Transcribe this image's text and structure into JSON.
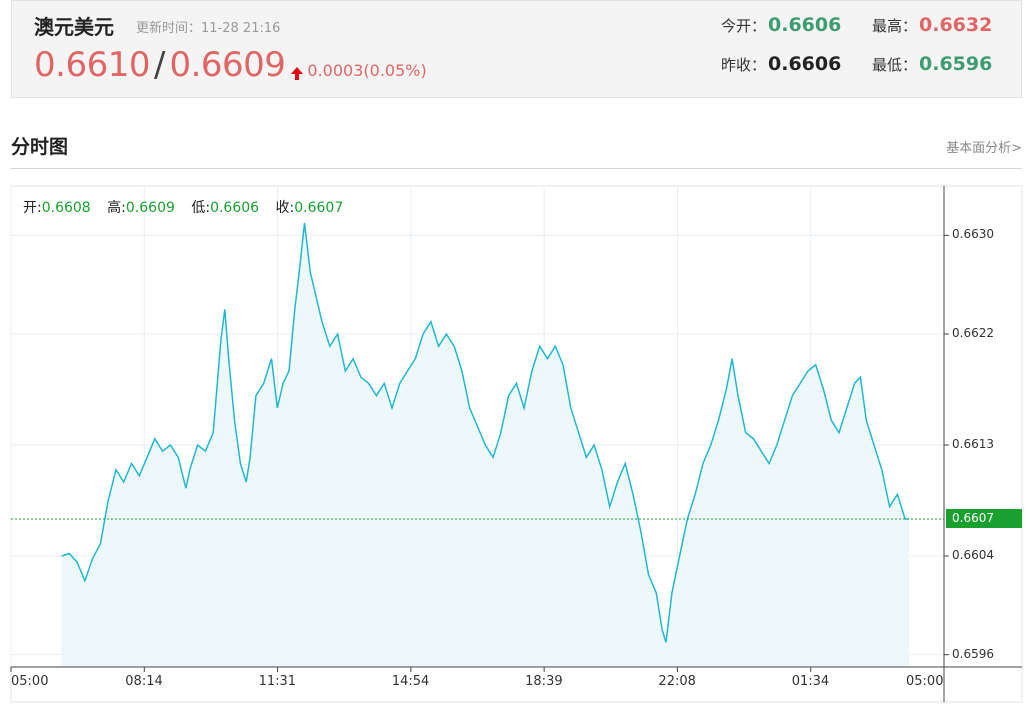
{
  "header": {
    "symbol": "澳元美元",
    "update_label": "更新时间：",
    "update_time": "11-28 21:16",
    "bid": "0.6610",
    "separator": "/",
    "ask": "0.6609",
    "change": "0.0003(0.05%)"
  },
  "stats": {
    "open_label": "今开：",
    "open": "0.6606",
    "high_label": "最高：",
    "high": "0.6632",
    "prev_close_label": "昨收：",
    "prev_close": "0.6606",
    "low_label": "最低：",
    "low": "0.6596"
  },
  "section": {
    "title": "分时图",
    "link": "基本面分析>"
  },
  "ohlc": {
    "open_label": "开:",
    "open": "0.6608",
    "high_label": "高:",
    "high": "0.6609",
    "low_label": "低:",
    "low": "0.6606",
    "close_label": "收:",
    "close": "0.6607"
  },
  "colors": {
    "line": "#1fb8d0",
    "area": "#eef8fb",
    "price_up": "#e06666",
    "stat_green": "#3d9d70",
    "last_tag": "#19a02f"
  },
  "chart_data": {
    "type": "area",
    "title": "分时图",
    "xlabel": "",
    "ylabel": "",
    "x_ticks": [
      "05:00",
      "08:14",
      "11:31",
      "14:54",
      "18:39",
      "22:08",
      "01:34",
      "05:00"
    ],
    "y_ticks": [
      "0.6630",
      "0.6622",
      "0.6613",
      "0.6604",
      "0.6596"
    ],
    "ylim": [
      0.6595,
      0.6634
    ],
    "xlim_hours": [
      0,
      24
    ],
    "grid": true,
    "last_price_line": 0.6607,
    "last_price_label": "0.6607",
    "series": [
      {
        "values": [
          [
            1.3,
            0.6604
          ],
          [
            1.5,
            0.66042
          ],
          [
            1.7,
            0.66035
          ],
          [
            1.9,
            0.6602
          ],
          [
            2.1,
            0.66038
          ],
          [
            2.3,
            0.6605
          ],
          [
            2.5,
            0.66085
          ],
          [
            2.7,
            0.6611
          ],
          [
            2.9,
            0.661
          ],
          [
            3.1,
            0.66115
          ],
          [
            3.3,
            0.66105
          ],
          [
            3.5,
            0.6612
          ],
          [
            3.7,
            0.66135
          ],
          [
            3.9,
            0.66125
          ],
          [
            4.1,
            0.6613
          ],
          [
            4.3,
            0.6612
          ],
          [
            4.5,
            0.66095
          ],
          [
            4.6,
            0.6611
          ],
          [
            4.8,
            0.6613
          ],
          [
            5.0,
            0.66125
          ],
          [
            5.2,
            0.6614
          ],
          [
            5.4,
            0.66215
          ],
          [
            5.5,
            0.6624
          ],
          [
            5.6,
            0.662
          ],
          [
            5.75,
            0.6615
          ],
          [
            5.9,
            0.66115
          ],
          [
            6.05,
            0.661
          ],
          [
            6.15,
            0.6612
          ],
          [
            6.3,
            0.6617
          ],
          [
            6.5,
            0.6618
          ],
          [
            6.7,
            0.662
          ],
          [
            6.85,
            0.6616
          ],
          [
            7.0,
            0.6618
          ],
          [
            7.15,
            0.6619
          ],
          [
            7.3,
            0.6624
          ],
          [
            7.45,
            0.6628
          ],
          [
            7.55,
            0.6631
          ],
          [
            7.7,
            0.6627
          ],
          [
            7.85,
            0.6625
          ],
          [
            8.0,
            0.6623
          ],
          [
            8.2,
            0.6621
          ],
          [
            8.4,
            0.6622
          ],
          [
            8.6,
            0.6619
          ],
          [
            8.8,
            0.662
          ],
          [
            9.0,
            0.66185
          ],
          [
            9.2,
            0.6618
          ],
          [
            9.4,
            0.6617
          ],
          [
            9.6,
            0.6618
          ],
          [
            9.8,
            0.6616
          ],
          [
            10.0,
            0.6618
          ],
          [
            10.2,
            0.6619
          ],
          [
            10.4,
            0.662
          ],
          [
            10.6,
            0.6622
          ],
          [
            10.8,
            0.6623
          ],
          [
            11.0,
            0.6621
          ],
          [
            11.2,
            0.6622
          ],
          [
            11.4,
            0.6621
          ],
          [
            11.6,
            0.6619
          ],
          [
            11.8,
            0.6616
          ],
          [
            12.0,
            0.66145
          ],
          [
            12.2,
            0.6613
          ],
          [
            12.4,
            0.6612
          ],
          [
            12.6,
            0.6614
          ],
          [
            12.8,
            0.6617
          ],
          [
            13.0,
            0.6618
          ],
          [
            13.2,
            0.6616
          ],
          [
            13.4,
            0.6619
          ],
          [
            13.6,
            0.6621
          ],
          [
            13.8,
            0.662
          ],
          [
            14.0,
            0.6621
          ],
          [
            14.2,
            0.66195
          ],
          [
            14.4,
            0.6616
          ],
          [
            14.6,
            0.6614
          ],
          [
            14.8,
            0.6612
          ],
          [
            15.0,
            0.6613
          ],
          [
            15.2,
            0.6611
          ],
          [
            15.4,
            0.6608
          ],
          [
            15.6,
            0.661
          ],
          [
            15.8,
            0.66115
          ],
          [
            16.0,
            0.6609
          ],
          [
            16.2,
            0.6606
          ],
          [
            16.4,
            0.66025
          ],
          [
            16.6,
            0.6601
          ],
          [
            16.75,
            0.6598
          ],
          [
            16.85,
            0.6597
          ],
          [
            17.0,
            0.6601
          ],
          [
            17.2,
            0.6604
          ],
          [
            17.4,
            0.6607
          ],
          [
            17.6,
            0.6609
          ],
          [
            17.8,
            0.66115
          ],
          [
            18.0,
            0.6613
          ],
          [
            18.2,
            0.6615
          ],
          [
            18.4,
            0.66175
          ],
          [
            18.55,
            0.662
          ],
          [
            18.7,
            0.6617
          ],
          [
            18.9,
            0.6614
          ],
          [
            19.1,
            0.66135
          ],
          [
            19.3,
            0.66125
          ],
          [
            19.5,
            0.66115
          ],
          [
            19.7,
            0.6613
          ],
          [
            19.9,
            0.6615
          ],
          [
            20.1,
            0.6617
          ],
          [
            20.3,
            0.6618
          ],
          [
            20.5,
            0.6619
          ],
          [
            20.7,
            0.66195
          ],
          [
            20.9,
            0.66175
          ],
          [
            21.1,
            0.6615
          ],
          [
            21.3,
            0.6614
          ],
          [
            21.5,
            0.6616
          ],
          [
            21.7,
            0.6618
          ],
          [
            21.85,
            0.66185
          ],
          [
            22.0,
            0.6615
          ],
          [
            22.2,
            0.6613
          ],
          [
            22.4,
            0.6611
          ],
          [
            22.6,
            0.6608
          ],
          [
            22.8,
            0.6609
          ],
          [
            23.0,
            0.6607
          ],
          [
            23.1,
            0.6607
          ]
        ]
      }
    ]
  }
}
